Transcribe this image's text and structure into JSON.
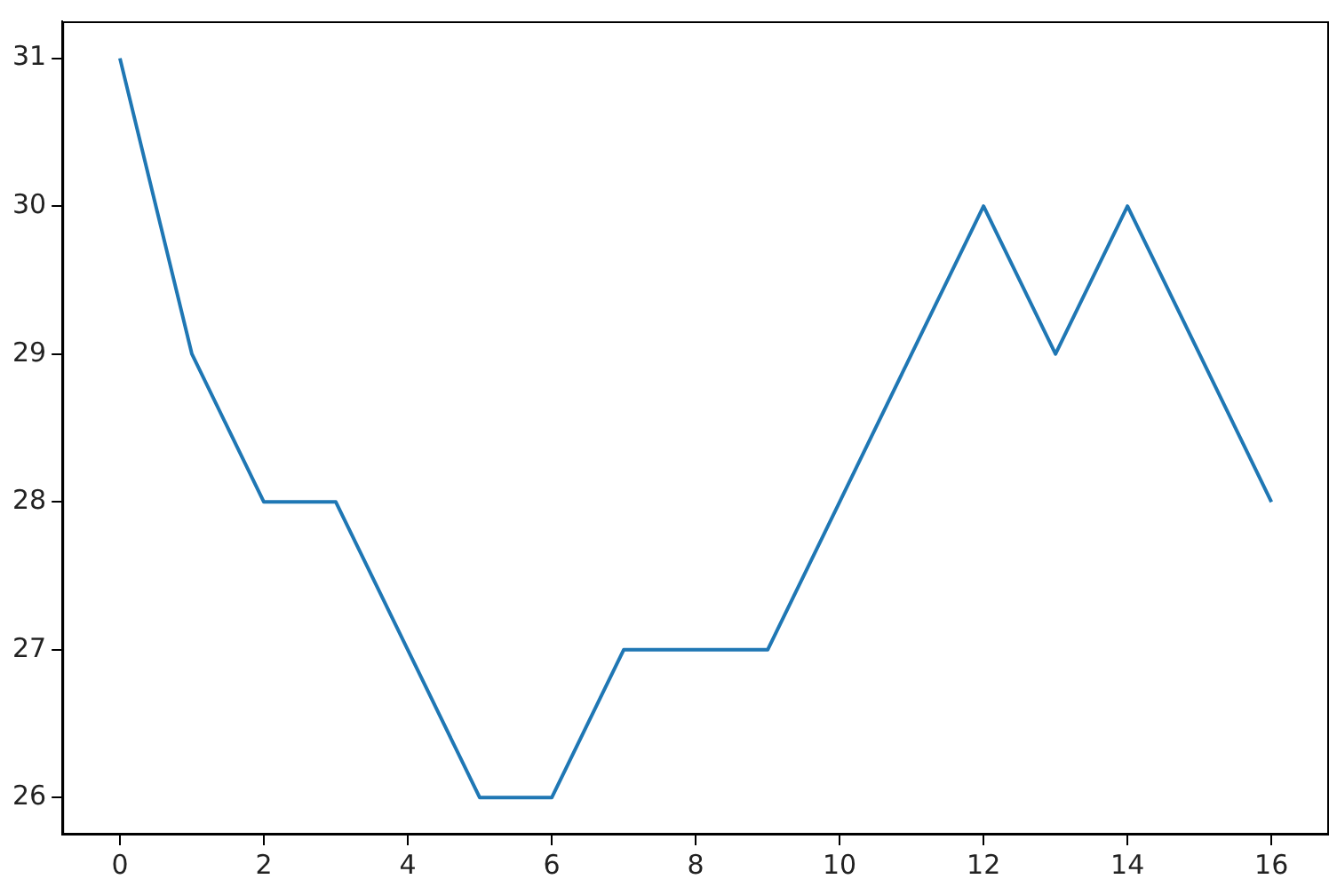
{
  "chart_data": {
    "type": "line",
    "x": [
      0,
      1,
      2,
      3,
      4,
      5,
      6,
      7,
      8,
      9,
      10,
      11,
      12,
      13,
      14,
      15,
      16
    ],
    "series": [
      {
        "color": "#1f77b4",
        "values": [
          31,
          29,
          28,
          28,
          27,
          26,
          26,
          27,
          27,
          27,
          28,
          29,
          30,
          29,
          30,
          29,
          28
        ]
      }
    ],
    "xlim": [
      -0.8,
      16.8
    ],
    "xticks": [
      0,
      2,
      4,
      6,
      8,
      10,
      12,
      14,
      16
    ],
    "ylim": [
      25.75,
      31.25
    ],
    "yticks": [
      26,
      27,
      28,
      29,
      30,
      31
    ],
    "grid": false,
    "legend": false,
    "marker": "none",
    "line_style": "solid"
  }
}
